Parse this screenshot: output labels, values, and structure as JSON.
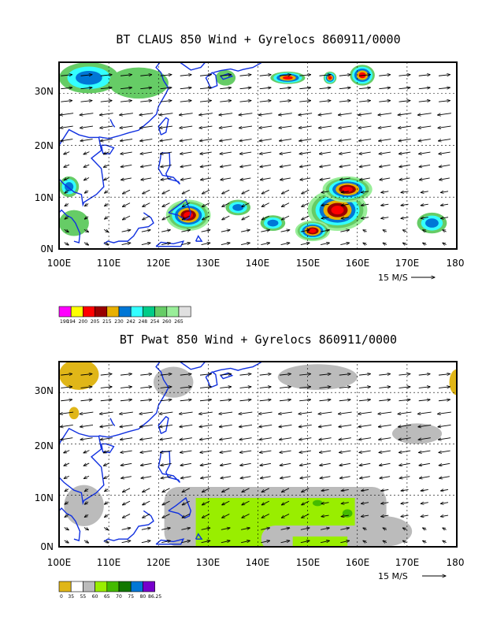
{
  "chart_data": [
    {
      "type": "map-contour-vector",
      "title": "BT CLAUS 850 Wind + Gyrelocs 860911/0000",
      "x_ticks": [
        "100E",
        "110E",
        "120E",
        "130E",
        "140E",
        "150E",
        "160E",
        "170E",
        "180"
      ],
      "y_ticks": [
        "0N",
        "10N",
        "20N",
        "30N"
      ],
      "lon_range": [
        100,
        180
      ],
      "lat_range": [
        0,
        36
      ],
      "reference_vector": "15 M/S",
      "colorbar": {
        "labels": [
          "190",
          "194",
          "200",
          "205",
          "215",
          "230",
          "242",
          "248",
          "254",
          "260",
          "265"
        ],
        "colors": [
          "#ff00ff",
          "#ffff00",
          "#ff0000",
          "#990000",
          "#e8b000",
          "#0077d6",
          "#33ffff",
          "#00cc88",
          "#66cc66",
          "#99ee99",
          "#e0e0e0"
        ]
      },
      "cloud_regions": [
        {
          "lon": 126,
          "lat": 6.5,
          "rlon": 4.5,
          "rlat": 3.0,
          "level": 3
        },
        {
          "lon": 156,
          "lat": 7.5,
          "rlon": 6.0,
          "rlat": 4.0,
          "level": 3
        },
        {
          "lon": 158,
          "lat": 11.5,
          "rlon": 5.0,
          "rlat": 2.5,
          "level": 3
        },
        {
          "lon": 151,
          "lat": 3.5,
          "rlon": 3.5,
          "rlat": 2.0,
          "level": 3
        },
        {
          "lon": 146,
          "lat": 33,
          "rlon": 3.5,
          "rlat": 1.2,
          "level": 2
        },
        {
          "lon": 154.5,
          "lat": 33,
          "rlon": 1.3,
          "rlat": 1.2,
          "level": 2
        },
        {
          "lon": 161,
          "lat": 33.5,
          "rlon": 2.5,
          "rlat": 2.0,
          "level": 2
        },
        {
          "lon": 106,
          "lat": 33,
          "rlon": 6.0,
          "rlat": 3.0,
          "level": 1
        },
        {
          "lon": 116,
          "lat": 32,
          "rlon": 6.0,
          "rlat": 3.0,
          "level": 0
        },
        {
          "lon": 102,
          "lat": 12,
          "rlon": 2.0,
          "rlat": 2.0,
          "level": 1
        },
        {
          "lon": 136,
          "lat": 8,
          "rlon": 2.5,
          "rlat": 1.5,
          "level": 1
        },
        {
          "lon": 143,
          "lat": 5,
          "rlon": 2.5,
          "rlat": 1.5,
          "level": 1
        },
        {
          "lon": 175,
          "lat": 5,
          "rlon": 3.0,
          "rlat": 2.0,
          "level": 1
        },
        {
          "lon": 103,
          "lat": 5,
          "rlon": 3.0,
          "rlat": 2.5,
          "level": 0
        },
        {
          "lon": 133.5,
          "lat": 33,
          "rlon": 2.0,
          "rlat": 1.5,
          "level": 0
        }
      ]
    },
    {
      "type": "map-contour-vector",
      "title": "BT Pwat 850 Wind + Gyrelocs 860911/0000",
      "x_ticks": [
        "100E",
        "110E",
        "120E",
        "130E",
        "140E",
        "150E",
        "160E",
        "170E",
        "180"
      ],
      "y_ticks": [
        "0N",
        "10N",
        "20N",
        "30N"
      ],
      "lon_range": [
        100,
        180
      ],
      "lat_range": [
        0,
        36
      ],
      "reference_vector": "15 M/S",
      "colorbar": {
        "labels": [
          "0",
          "35",
          "55",
          "60",
          "65",
          "70",
          "75",
          "80",
          "86.25"
        ],
        "colors": [
          "#e0b618",
          "#ffffff",
          "#bbbbbb",
          "#99ee00",
          "#44bb00",
          "#117700",
          "#0077d6",
          "#7700cc"
        ]
      },
      "pwat_regions": [
        {
          "kind": "rect",
          "lon": [
            127.5,
            159.5
          ],
          "lat": [
            0,
            9.5
          ],
          "level": 3
        },
        {
          "kind": "rect",
          "lon": [
            147,
            158
          ],
          "lat": [
            -1,
            2
          ],
          "level": 3
        },
        {
          "kind": "ellipse",
          "lon": 158,
          "lat": 6.5,
          "rlon": 1.0,
          "rlat": 0.8,
          "level": 4
        },
        {
          "kind": "ellipse",
          "lon": 152,
          "lat": 8.5,
          "rlon": 1.0,
          "rlat": 0.6,
          "level": 4
        },
        {
          "kind": "ellipse",
          "lon": 104,
          "lat": 33.5,
          "rlon": 4.0,
          "rlat": 3.0,
          "level": 0
        },
        {
          "kind": "ellipse",
          "lon": 180,
          "lat": 32,
          "rlon": 1.5,
          "rlat": 2.5,
          "level": 0
        },
        {
          "kind": "ellipse",
          "lon": 103,
          "lat": 26,
          "rlon": 1.0,
          "rlat": 1.2,
          "level": 0
        }
      ]
    }
  ]
}
